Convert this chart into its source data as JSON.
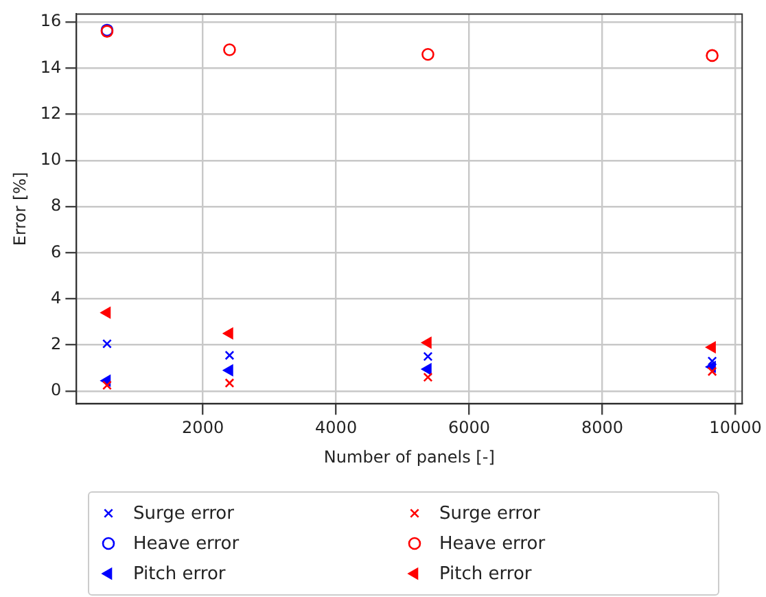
{
  "chart_data": {
    "type": "scatter",
    "xlabel": "Number of panels [-]",
    "ylabel": "Error [%]",
    "x": [
      560,
      2400,
      5380,
      9650
    ],
    "series": [
      {
        "name": "Surge error",
        "color": "#0000ff",
        "marker": "cross",
        "values": [
          2.05,
          1.55,
          1.5,
          1.3
        ]
      },
      {
        "name": "Heave error",
        "color": "#0000ff",
        "marker": "circle",
        "values": [
          15.65,
          null,
          null,
          null
        ]
      },
      {
        "name": "Pitch error",
        "color": "#0000ff",
        "marker": "triangle",
        "values": [
          0.45,
          0.9,
          0.95,
          1.05
        ]
      },
      {
        "name": "Surge error",
        "color": "#ff0000",
        "marker": "cross",
        "values": [
          0.25,
          0.35,
          0.6,
          0.85
        ]
      },
      {
        "name": "Heave error",
        "color": "#ff0000",
        "marker": "circle",
        "values": [
          15.6,
          14.8,
          14.6,
          14.55
        ]
      },
      {
        "name": "Pitch error",
        "color": "#ff0000",
        "marker": "triangle",
        "values": [
          3.4,
          2.5,
          2.1,
          1.9
        ]
      }
    ],
    "xlim": [
      100,
      10100
    ],
    "xticks": [
      2000,
      4000,
      6000,
      8000,
      10000
    ],
    "ylim": [
      -0.55,
      16.35
    ],
    "yticks": [
      0,
      2,
      4,
      6,
      8,
      10,
      12,
      14,
      16
    ],
    "grid": true,
    "legend": "bottom"
  }
}
